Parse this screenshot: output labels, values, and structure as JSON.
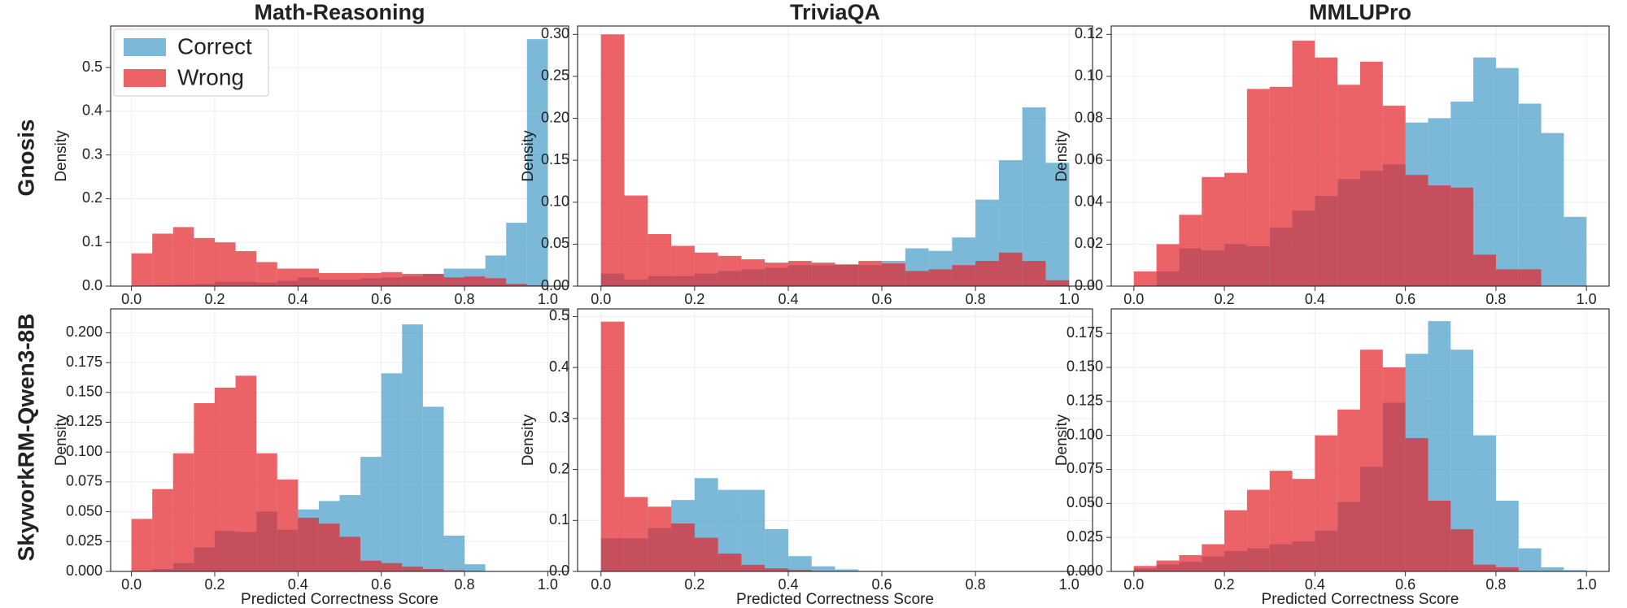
{
  "row_labels": [
    "Gnosis",
    "SkyworkRM-Qwen3-8B"
  ],
  "chart_data": [
    {
      "type": "histogram",
      "title": "Math-Reasoning",
      "ylabel": "Density",
      "grid": true,
      "legend": "upper left",
      "alpha": 0.72,
      "bins": [
        0,
        0.05,
        0.1,
        0.15,
        0.2,
        0.25,
        0.3,
        0.35,
        0.4,
        0.45,
        0.5,
        0.55,
        0.6,
        0.65,
        0.7,
        0.75,
        0.8,
        0.85,
        0.9,
        0.95,
        1
      ],
      "xlim": [
        -0.05,
        1.05
      ],
      "xticks": [
        {
          "value": 0,
          "label": "0.0"
        },
        0.2,
        0.4,
        0.6,
        0.8,
        {
          "value": 1,
          "label": "1.0"
        }
      ],
      "ylim": [
        0,
        0.595
      ],
      "yticks": [
        {
          "value": 0,
          "label": "0.0"
        },
        0.1,
        0.2,
        0.3,
        0.4,
        0.5
      ],
      "series": [
        {
          "name": "Correct",
          "color": "#4a9ecb",
          "values": [
            0,
            0.002,
            0.003,
            0.005,
            0.01,
            0.01,
            0.008,
            0.012,
            0.02,
            0.015,
            0.015,
            0.018,
            0.02,
            0.022,
            0.028,
            0.04,
            0.04,
            0.07,
            0.145,
            0.565
          ]
        },
        {
          "name": "Wrong",
          "color": "#e3262d",
          "values": [
            0.075,
            0.12,
            0.135,
            0.11,
            0.1,
            0.08,
            0.055,
            0.04,
            0.04,
            0.03,
            0.03,
            0.03,
            0.032,
            0.028,
            0.028,
            0.02,
            0.022,
            0.018,
            0.005,
            0.002
          ]
        }
      ]
    },
    {
      "type": "histogram",
      "title": "TriviaQA",
      "ylabel": "Density",
      "grid": true,
      "alpha": 0.72,
      "bins": [
        0,
        0.05,
        0.1,
        0.15,
        0.2,
        0.25,
        0.3,
        0.35,
        0.4,
        0.45,
        0.5,
        0.55,
        0.6,
        0.65,
        0.7,
        0.75,
        0.8,
        0.85,
        0.9,
        0.95,
        1
      ],
      "xlim": [
        -0.05,
        1.05
      ],
      "xticks": [
        {
          "value": 0,
          "label": "0.0"
        },
        0.2,
        0.4,
        0.6,
        0.8,
        {
          "value": 1,
          "label": "1.0"
        }
      ],
      "ylim": [
        0,
        0.31
      ],
      "yticks": [
        {
          "value": 0,
          "label": "0.00"
        },
        0.05,
        {
          "value": 0.1,
          "label": "0.10"
        },
        0.15,
        {
          "value": 0.2,
          "label": "0.20"
        },
        0.25,
        {
          "value": 0.3,
          "label": "0.30"
        }
      ],
      "series": [
        {
          "color": "#4a9ecb",
          "values": [
            0.015,
            0.008,
            0.012,
            0.012,
            0.015,
            0.018,
            0.02,
            0.022,
            0.025,
            0.025,
            0.025,
            0.025,
            0.03,
            0.045,
            0.042,
            0.058,
            0.103,
            0.15,
            0.213,
            0.147
          ]
        },
        {
          "color": "#e3262d",
          "values": [
            0.3,
            0.108,
            0.062,
            0.048,
            0.04,
            0.036,
            0.032,
            0.028,
            0.03,
            0.028,
            0.026,
            0.03,
            0.027,
            0.018,
            0.02,
            0.025,
            0.03,
            0.04,
            0.03,
            0.007
          ]
        }
      ]
    },
    {
      "type": "histogram",
      "title": "MMLUPro",
      "ylabel": "Density",
      "grid": true,
      "alpha": 0.72,
      "bins": [
        0,
        0.05,
        0.1,
        0.15,
        0.2,
        0.25,
        0.3,
        0.35,
        0.4,
        0.45,
        0.5,
        0.55,
        0.6,
        0.65,
        0.7,
        0.75,
        0.8,
        0.85,
        0.9,
        0.95,
        1
      ],
      "xlim": [
        -0.05,
        1.05
      ],
      "xticks": [
        {
          "value": 0,
          "label": "0.0"
        },
        0.2,
        0.4,
        0.6,
        0.8,
        {
          "value": 1,
          "label": "1.0"
        }
      ],
      "ylim": [
        0,
        0.124
      ],
      "yticks": [
        {
          "value": 0,
          "label": "0.00"
        },
        0.02,
        0.04,
        0.06,
        0.08,
        {
          "value": 0.1,
          "label": "0.10"
        },
        0.12
      ],
      "series": [
        {
          "color": "#4a9ecb",
          "values": [
            0,
            0.007,
            0.018,
            0.017,
            0.02,
            0.019,
            0.028,
            0.036,
            0.043,
            0.051,
            0.055,
            0.058,
            0.078,
            0.08,
            0.088,
            0.109,
            0.104,
            0.087,
            0.073,
            0.033
          ]
        },
        {
          "color": "#e3262d",
          "values": [
            0.007,
            0.02,
            0.034,
            0.052,
            0.054,
            0.094,
            0.095,
            0.117,
            0.109,
            0.096,
            0.107,
            0.086,
            0.053,
            0.048,
            0.047,
            0.015,
            0.008,
            0.008,
            0,
            0
          ]
        }
      ]
    },
    {
      "type": "histogram",
      "ylabel": "Density",
      "xlabel": "Predicted Correctness Score",
      "grid": true,
      "alpha": 0.72,
      "bins": [
        0,
        0.05,
        0.1,
        0.15,
        0.2,
        0.25,
        0.3,
        0.35,
        0.4,
        0.45,
        0.5,
        0.55,
        0.6,
        0.65,
        0.7,
        0.75,
        0.8,
        0.85,
        0.9,
        0.95,
        1
      ],
      "xlim": [
        -0.05,
        1.05
      ],
      "xticks": [
        {
          "value": 0,
          "label": "0.0"
        },
        0.2,
        0.4,
        0.6,
        0.8,
        {
          "value": 1,
          "label": "1.0"
        }
      ],
      "ylim": [
        0,
        0.22
      ],
      "yticks": [
        {
          "value": 0,
          "label": "0.000"
        },
        0.025,
        {
          "value": 0.05,
          "label": "0.050"
        },
        0.075,
        {
          "value": 0.1,
          "label": "0.100"
        },
        0.125,
        {
          "value": 0.15,
          "label": "0.150"
        },
        0.175,
        {
          "value": 0.2,
          "label": "0.200"
        }
      ],
      "series": [
        {
          "color": "#4a9ecb",
          "values": [
            0,
            0.002,
            0.007,
            0.02,
            0.034,
            0.033,
            0.05,
            0.035,
            0.052,
            0.059,
            0.064,
            0.096,
            0.166,
            0.207,
            0.138,
            0.03,
            0.006,
            0,
            0,
            0
          ]
        },
        {
          "color": "#e3262d",
          "values": [
            0.044,
            0.069,
            0.099,
            0.141,
            0.154,
            0.164,
            0.099,
            0.077,
            0.045,
            0.04,
            0.029,
            0.009,
            0.007,
            0.004,
            0.002,
            0.001,
            0,
            0,
            0,
            0
          ]
        }
      ]
    },
    {
      "type": "histogram",
      "ylabel": "Density",
      "xlabel": "Predicted Correctness Score",
      "grid": true,
      "alpha": 0.72,
      "bins": [
        0,
        0.05,
        0.1,
        0.15,
        0.2,
        0.25,
        0.3,
        0.35,
        0.4,
        0.45,
        0.5,
        0.55,
        0.6,
        0.65,
        0.7,
        0.75,
        0.8,
        0.85,
        0.9,
        0.95,
        1
      ],
      "xlim": [
        -0.05,
        1.05
      ],
      "xticks": [
        {
          "value": 0,
          "label": "0.0"
        },
        0.2,
        0.4,
        0.6,
        0.8,
        {
          "value": 1,
          "label": "1.0"
        }
      ],
      "ylim": [
        0,
        0.515
      ],
      "yticks": [
        {
          "value": 0,
          "label": "0.0"
        },
        0.1,
        0.2,
        0.3,
        0.4,
        0.5
      ],
      "series": [
        {
          "color": "#4a9ecb",
          "values": [
            0.065,
            0.065,
            0.085,
            0.14,
            0.183,
            0.16,
            0.16,
            0.083,
            0.03,
            0.01,
            0.004,
            0.001,
            0,
            0,
            0,
            0,
            0,
            0,
            0,
            0
          ]
        },
        {
          "color": "#e3262d",
          "values": [
            0.49,
            0.146,
            0.127,
            0.094,
            0.066,
            0.035,
            0.013,
            0.006,
            0.003,
            0.001,
            0,
            0,
            0,
            0,
            0,
            0,
            0,
            0,
            0,
            0
          ]
        }
      ]
    },
    {
      "type": "histogram",
      "ylabel": "Density",
      "xlabel": "Predicted Correctness Score",
      "grid": true,
      "alpha": 0.72,
      "bins": [
        0,
        0.05,
        0.1,
        0.15,
        0.2,
        0.25,
        0.3,
        0.35,
        0.4,
        0.45,
        0.5,
        0.55,
        0.6,
        0.65,
        0.7,
        0.75,
        0.8,
        0.85,
        0.9,
        0.95,
        1
      ],
      "xlim": [
        -0.05,
        1.05
      ],
      "xticks": [
        {
          "value": 0,
          "label": "0.0"
        },
        0.2,
        0.4,
        0.6,
        0.8,
        {
          "value": 1,
          "label": "1.0"
        }
      ],
      "ylim": [
        0,
        0.193
      ],
      "yticks": [
        {
          "value": 0,
          "label": "0.000"
        },
        0.025,
        {
          "value": 0.05,
          "label": "0.050"
        },
        0.075,
        {
          "value": 0.1,
          "label": "0.100"
        },
        0.125,
        {
          "value": 0.15,
          "label": "0.150"
        },
        0.175
      ],
      "series": [
        {
          "color": "#4a9ecb",
          "values": [
            0.002,
            0.005,
            0.007,
            0.011,
            0.015,
            0.017,
            0.02,
            0.022,
            0.03,
            0.051,
            0.077,
            0.124,
            0.16,
            0.184,
            0.163,
            0.1,
            0.052,
            0.017,
            0.003,
            0.001
          ]
        },
        {
          "color": "#e3262d",
          "values": [
            0.004,
            0.008,
            0.012,
            0.02,
            0.045,
            0.06,
            0.074,
            0.068,
            0.1,
            0.119,
            0.163,
            0.15,
            0.098,
            0.052,
            0.031,
            0.005,
            0.003,
            0,
            0,
            0
          ]
        }
      ]
    }
  ]
}
